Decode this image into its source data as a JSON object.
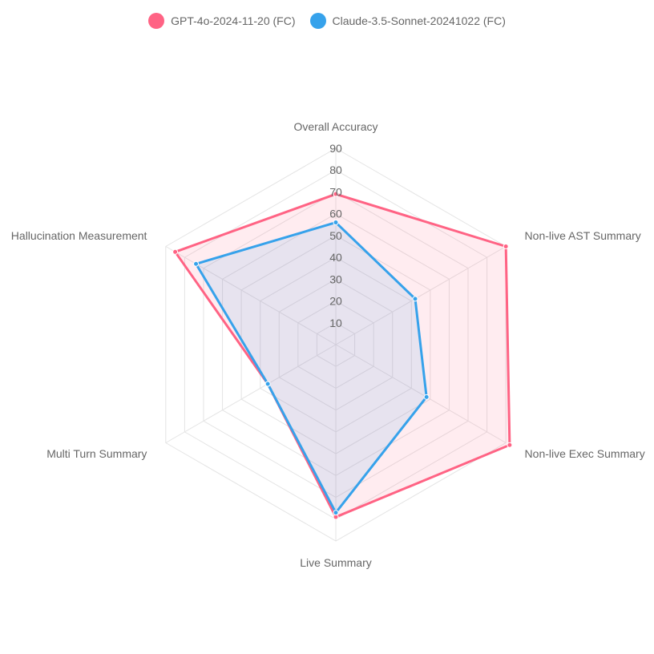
{
  "chart_data": {
    "type": "radar",
    "axes": [
      "Overall Accuracy",
      "Non-live AST Summary",
      "Non-live Exec Summary",
      "Live Summary",
      "Multi Turn Summary",
      "Hallucination Measurement"
    ],
    "r_ticks": [
      "10",
      "20",
      "30",
      "40",
      "50",
      "60",
      "70",
      "80",
      "90"
    ],
    "r_range": [
      0,
      90
    ],
    "grid": true,
    "legend_position": "top",
    "series": [
      {
        "name": "GPT-4o-2024-11-20 (FC)",
        "color": "#ff6384",
        "fill": "rgba(255,99,132,0.12)",
        "values": [
          69,
          90,
          92,
          79,
          36,
          85
        ]
      },
      {
        "name": "Claude-3.5-Sonnet-20241022 (FC)",
        "color": "#36a2eb",
        "fill": "rgba(54,162,235,0.12)",
        "values": [
          56,
          42,
          48,
          77,
          36,
          74
        ]
      }
    ]
  }
}
